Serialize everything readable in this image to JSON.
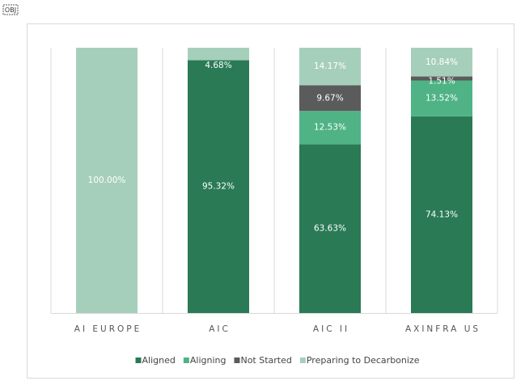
{
  "badge": "OBJ",
  "chart_data": {
    "type": "stacked_bar",
    "categories": [
      "AI EUROPE",
      "AIC",
      "AIC II",
      "AXINFRA US"
    ],
    "ylim": [
      0,
      100
    ],
    "series": [
      {
        "name": "Aligned",
        "color": "#2a7a55",
        "values": [
          null,
          95.32,
          63.63,
          74.13
        ],
        "value_labels": [
          null,
          "95.32%",
          "63.63%",
          "74.13%"
        ]
      },
      {
        "name": "Aligning",
        "color": "#4fb386",
        "values": [
          null,
          null,
          12.53,
          13.52
        ],
        "value_labels": [
          null,
          null,
          "12.53%",
          "13.52%"
        ]
      },
      {
        "name": "Not Started",
        "color": "#5b5b5b",
        "values": [
          null,
          null,
          9.67,
          1.51
        ],
        "value_labels": [
          null,
          null,
          "9.67%",
          "1.51%"
        ]
      },
      {
        "name": "Preparing to Decarbonize",
        "color": "#a6cfbb",
        "values": [
          100,
          4.68,
          14.17,
          10.84
        ],
        "value_labels": [
          "100.00%",
          "4.68%",
          "14.17%",
          "10.84%"
        ]
      }
    ]
  }
}
